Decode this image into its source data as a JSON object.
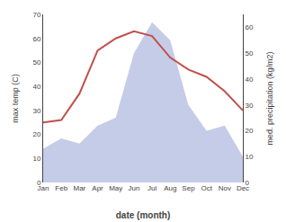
{
  "chart_data": {
    "type": "line",
    "xlabel": "date (month)",
    "ylabel": "max temp (C)",
    "y2label": "med. precipitation (kg/m2)",
    "categories": [
      "Jan",
      "Feb",
      "Mar",
      "Apr",
      "May",
      "Jun",
      "Jul",
      "Aug",
      "Sep",
      "Oct",
      "Nov",
      "Dec"
    ],
    "series": [
      {
        "type": "area",
        "axis": "y2",
        "color": "#c5cce8",
        "values": [
          13,
          17,
          15,
          22,
          25,
          50,
          62,
          55,
          30,
          20,
          22,
          10
        ]
      },
      {
        "type": "line",
        "color": "#c0504d",
        "values": [
          25,
          26,
          37,
          55,
          60,
          63,
          61,
          52,
          47,
          44,
          38,
          30
        ]
      }
    ],
    "ylim": [
      0,
      70
    ],
    "yticks": [
      0,
      10,
      20,
      30,
      40,
      50,
      60,
      70
    ],
    "y2lim": [
      0,
      65
    ],
    "y2ticks": [
      0,
      10,
      20,
      30,
      40,
      50,
      60
    ],
    "grid": false
  }
}
